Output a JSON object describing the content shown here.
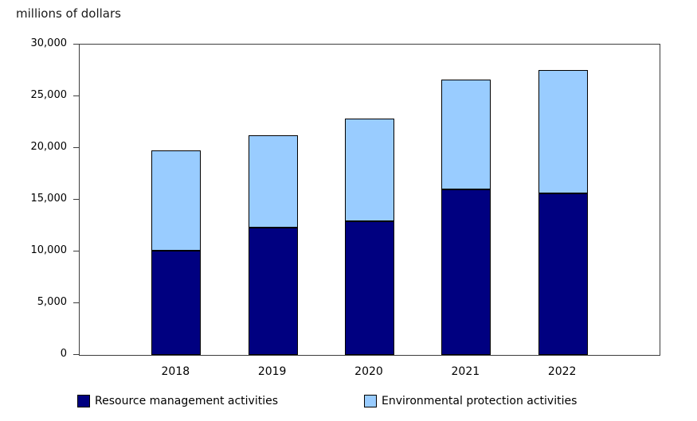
{
  "title": "millions of dollars",
  "chart_data": {
    "type": "bar",
    "stacked": true,
    "title": "millions of dollars",
    "xlabel": "",
    "ylabel": "millions of dollars",
    "categories": [
      "2018",
      "2019",
      "2020",
      "2021",
      "2022"
    ],
    "series": [
      {
        "name": "Resource management activities",
        "color": "#000080",
        "values": [
          10050,
          12300,
          12950,
          16000,
          15600
        ]
      },
      {
        "name": "Environmental protection activities",
        "color": "#99CCFF",
        "values": [
          9700,
          8900,
          9900,
          10600,
          11900
        ]
      }
    ],
    "totals": [
      19750,
      21200,
      22850,
      26600,
      27500
    ],
    "ylim": [
      0,
      30000
    ],
    "ytick_interval": 5000,
    "ytick_labels": [
      "0",
      "5,000",
      "10,000",
      "15,000",
      "20,000",
      "25,000",
      "30,000"
    ],
    "grid": false,
    "legend_position": "bottom"
  }
}
